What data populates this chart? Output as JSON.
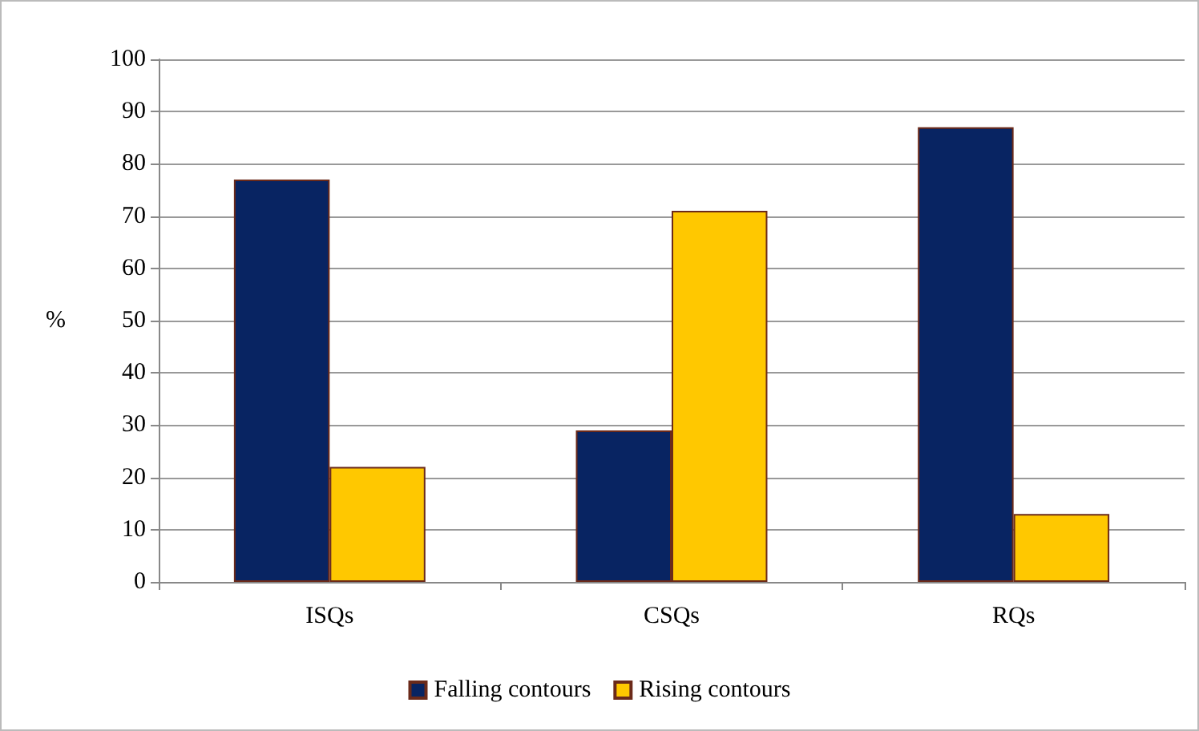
{
  "chart_data": {
    "type": "bar",
    "ylabel": "%",
    "categories": [
      "ISQs",
      "CSQs",
      "RQs"
    ],
    "series": [
      {
        "name": "Falling contours",
        "color": "#082462",
        "values": [
          77,
          29,
          87
        ]
      },
      {
        "name": "Rising contours",
        "color": "#ffc800",
        "values": [
          22,
          71,
          13
        ]
      }
    ],
    "ylim": [
      0,
      100
    ],
    "yticks": [
      0,
      10,
      20,
      30,
      40,
      50,
      60,
      70,
      80,
      90,
      100
    ],
    "grid": "y",
    "legend": "bottom"
  }
}
